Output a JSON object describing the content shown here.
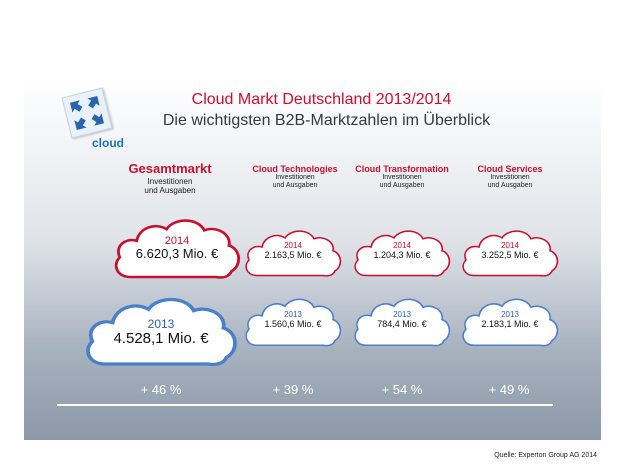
{
  "header": {
    "title": "Cloud Markt Deutschland 2013/2014",
    "subtitle": "Die wichtigsten B2B-Marktzahlen im Überblick",
    "logo_text": "cloud",
    "logo_icon": "arrows-converging-icon"
  },
  "colors": {
    "accent_red": "#c8102e",
    "accent_blue": "#2a63b0",
    "text_dark": "#333b45"
  },
  "columns": [
    {
      "name": "Gesamtmarkt",
      "sub1": "Investitionen",
      "sub2": "und Ausgaben",
      "year_2014": "2014",
      "value_2014": "6.620,3 Mio. €",
      "year_2013": "2013",
      "value_2013": "4.528,1 Mio. €",
      "growth": "+ 46 %"
    },
    {
      "name": "Cloud Technologies",
      "sub1": "Investitionen",
      "sub2": "und Ausgaben",
      "year_2014": "2014",
      "value_2014": "2.163,5 Mio. €",
      "year_2013": "2013",
      "value_2013": "1.560,6 Mio. €",
      "growth": "+ 39 %"
    },
    {
      "name": "Cloud Transformation",
      "sub1": "Investitionen",
      "sub2": "und Ausgaben",
      "year_2014": "2014",
      "value_2014": "1.204,3 Mio. €",
      "year_2013": "2013",
      "value_2013": "784,4 Mio. €",
      "growth": "+ 54 %"
    },
    {
      "name": "Cloud Services",
      "sub1": "Investitionen",
      "sub2": "und Ausgaben",
      "year_2014": "2014",
      "value_2014": "3.252,5 Mio. €",
      "year_2013": "2013",
      "value_2013": "2.183,1 Mio. €",
      "growth": "+ 49 %"
    }
  ],
  "footer": {
    "source": "Quelle: Experton Group AG 2014"
  }
}
